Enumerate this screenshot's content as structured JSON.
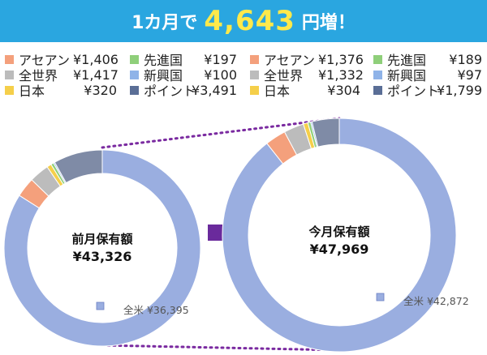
{
  "banner": {
    "prefix": "1カ月で",
    "amount": "4,643",
    "suffix": "円増！"
  },
  "legend_left": [
    {
      "name": "アセアン",
      "value": "¥1,406",
      "color": "#f4a07c"
    },
    {
      "name": "先進国",
      "value": "¥197",
      "color": "#8fcf7a"
    },
    {
      "name": "全世界",
      "value": "¥1,417",
      "color": "#bcbcbc"
    },
    {
      "name": "新興国",
      "value": "¥100",
      "color": "#8fb3e8"
    },
    {
      "name": "日本",
      "value": "¥320",
      "color": "#f5cf4a"
    },
    {
      "name": "ポイント",
      "value": "¥3,491",
      "color": "#5a6e96"
    }
  ],
  "legend_right": [
    {
      "name": "アセアン",
      "value": "¥1,376",
      "color": "#f4a07c"
    },
    {
      "name": "先進国",
      "value": "¥189",
      "color": "#8fcf7a"
    },
    {
      "name": "全世界",
      "value": "¥1,332",
      "color": "#bcbcbc"
    },
    {
      "name": "新興国",
      "value": "¥97",
      "color": "#8fb3e8"
    },
    {
      "name": "日本",
      "value": "¥304",
      "color": "#f5cf4a"
    },
    {
      "name": "ポイント",
      "value": "¥1,799",
      "color": "#5a6e96"
    }
  ],
  "chart_data": [
    {
      "type": "pie",
      "title": "前月保有額",
      "total": "¥43,326",
      "slices": [
        {
          "name": "全米",
          "value": 36395,
          "color": "#9aaee0"
        },
        {
          "name": "アセアン",
          "value": 1406,
          "color": "#f4a07c"
        },
        {
          "name": "全世界",
          "value": 1417,
          "color": "#bcbcbc"
        },
        {
          "name": "日本",
          "value": 320,
          "color": "#f5cf4a"
        },
        {
          "name": "先進国",
          "value": 197,
          "color": "#8fcf7a"
        },
        {
          "name": "新興国",
          "value": 100,
          "color": "#8fb3e8"
        },
        {
          "name": "ポイント",
          "value": 3491,
          "color": "#7f8ba6"
        }
      ],
      "point_label": "全米 ¥36,395"
    },
    {
      "type": "pie",
      "title": "今月保有額",
      "total": "¥47,969",
      "slices": [
        {
          "name": "全米",
          "value": 42872,
          "color": "#9aaee0"
        },
        {
          "name": "アセアン",
          "value": 1376,
          "color": "#f4a07c"
        },
        {
          "name": "全世界",
          "value": 1332,
          "color": "#bcbcbc"
        },
        {
          "name": "日本",
          "value": 304,
          "color": "#f5cf4a"
        },
        {
          "name": "先進国",
          "value": 189,
          "color": "#8fcf7a"
        },
        {
          "name": "新興国",
          "value": 97,
          "color": "#8fb3e8"
        },
        {
          "name": "ポイント",
          "value": 1799,
          "color": "#7f8ba6"
        }
      ],
      "point_label": "全米 ¥42,872"
    }
  ],
  "colors": {
    "arrow": "#6a2a9c",
    "connector": "#7a2aa0",
    "banner": "#2aa6e0",
    "amount": "#ffe94a"
  }
}
